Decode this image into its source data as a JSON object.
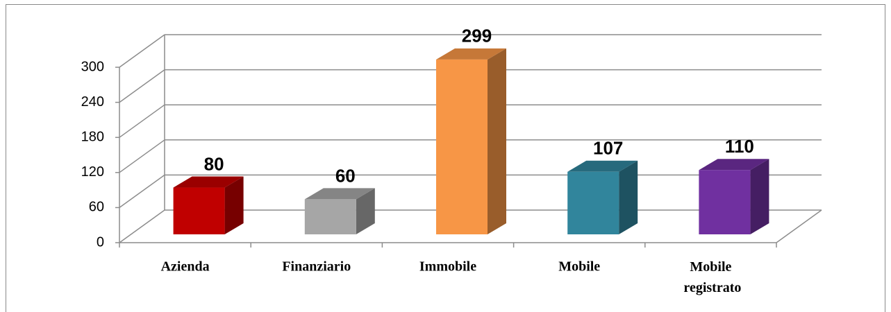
{
  "chart_data": {
    "type": "bar3d",
    "categories": [
      "Azienda",
      "Finanziario",
      "Immobile",
      "Mobile",
      "Mobile registrato"
    ],
    "values": [
      80,
      60,
      299,
      107,
      110
    ],
    "colors": [
      "#c00000",
      "#a6a6a6",
      "#f79646",
      "#31859c",
      "#7030a0"
    ],
    "ylim": [
      0,
      300
    ],
    "yticks": [
      0,
      60,
      120,
      180,
      240,
      300
    ],
    "grid": true
  }
}
